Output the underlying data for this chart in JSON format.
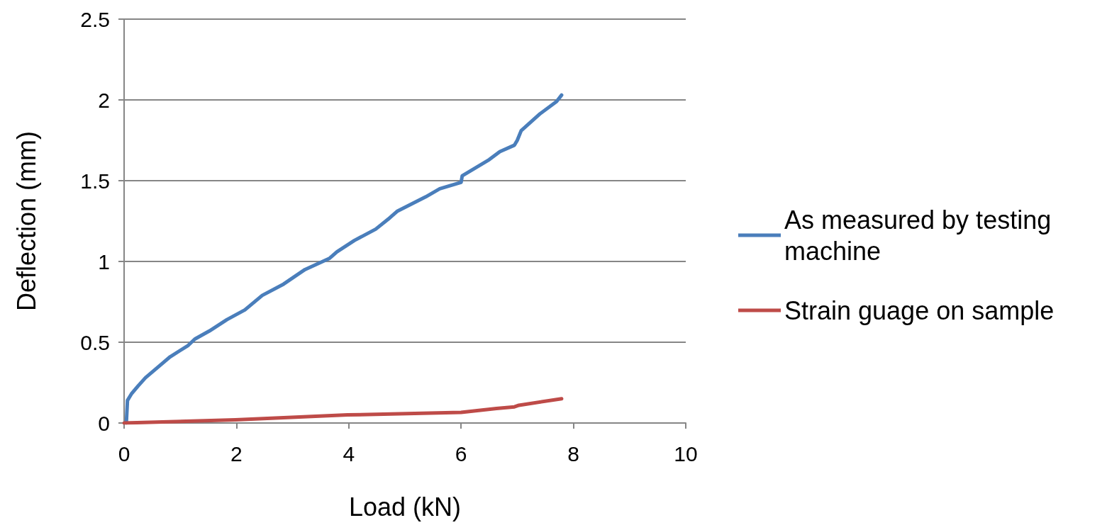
{
  "chart_data": {
    "type": "line",
    "xlabel": "Load (kN)",
    "ylabel": "Deflection (mm)",
    "xlim": [
      0,
      10
    ],
    "xticks": [
      0,
      2,
      4,
      6,
      8,
      10
    ],
    "ylim": [
      0,
      2.5
    ],
    "yticks": [
      0,
      0.5,
      1,
      1.5,
      2,
      2.5
    ],
    "grid": "y",
    "legend": "right",
    "marker": "none",
    "line_style": "solid",
    "series": [
      {
        "name": "As measured by testing machine",
        "color": "#4a7ebb",
        "x": [
          0.04,
          0.06,
          0.13,
          0.25,
          0.38,
          0.82,
          1.14,
          1.26,
          1.52,
          1.83,
          2.15,
          2.46,
          2.84,
          3.22,
          3.66,
          3.79,
          4.1,
          4.48,
          4.73,
          4.86,
          5.37,
          5.62,
          6.0,
          6.02,
          6.5,
          6.69,
          6.95,
          7.0,
          7.07,
          7.39,
          7.7,
          7.79
        ],
        "values": [
          0,
          0.14,
          0.18,
          0.23,
          0.28,
          0.41,
          0.48,
          0.52,
          0.57,
          0.64,
          0.7,
          0.79,
          0.86,
          0.95,
          1.02,
          1.06,
          1.13,
          1.2,
          1.27,
          1.31,
          1.4,
          1.45,
          1.49,
          1.53,
          1.63,
          1.68,
          1.72,
          1.75,
          1.81,
          1.91,
          1.99,
          2.03
        ]
      },
      {
        "name": "Strain guage on sample",
        "color": "#be4b48",
        "x": [
          0,
          1.98,
          3.98,
          6.0,
          6.63,
          6.95,
          7.03,
          7.79
        ],
        "values": [
          0,
          0.02,
          0.05,
          0.066,
          0.09,
          0.1,
          0.11,
          0.15
        ]
      }
    ]
  }
}
